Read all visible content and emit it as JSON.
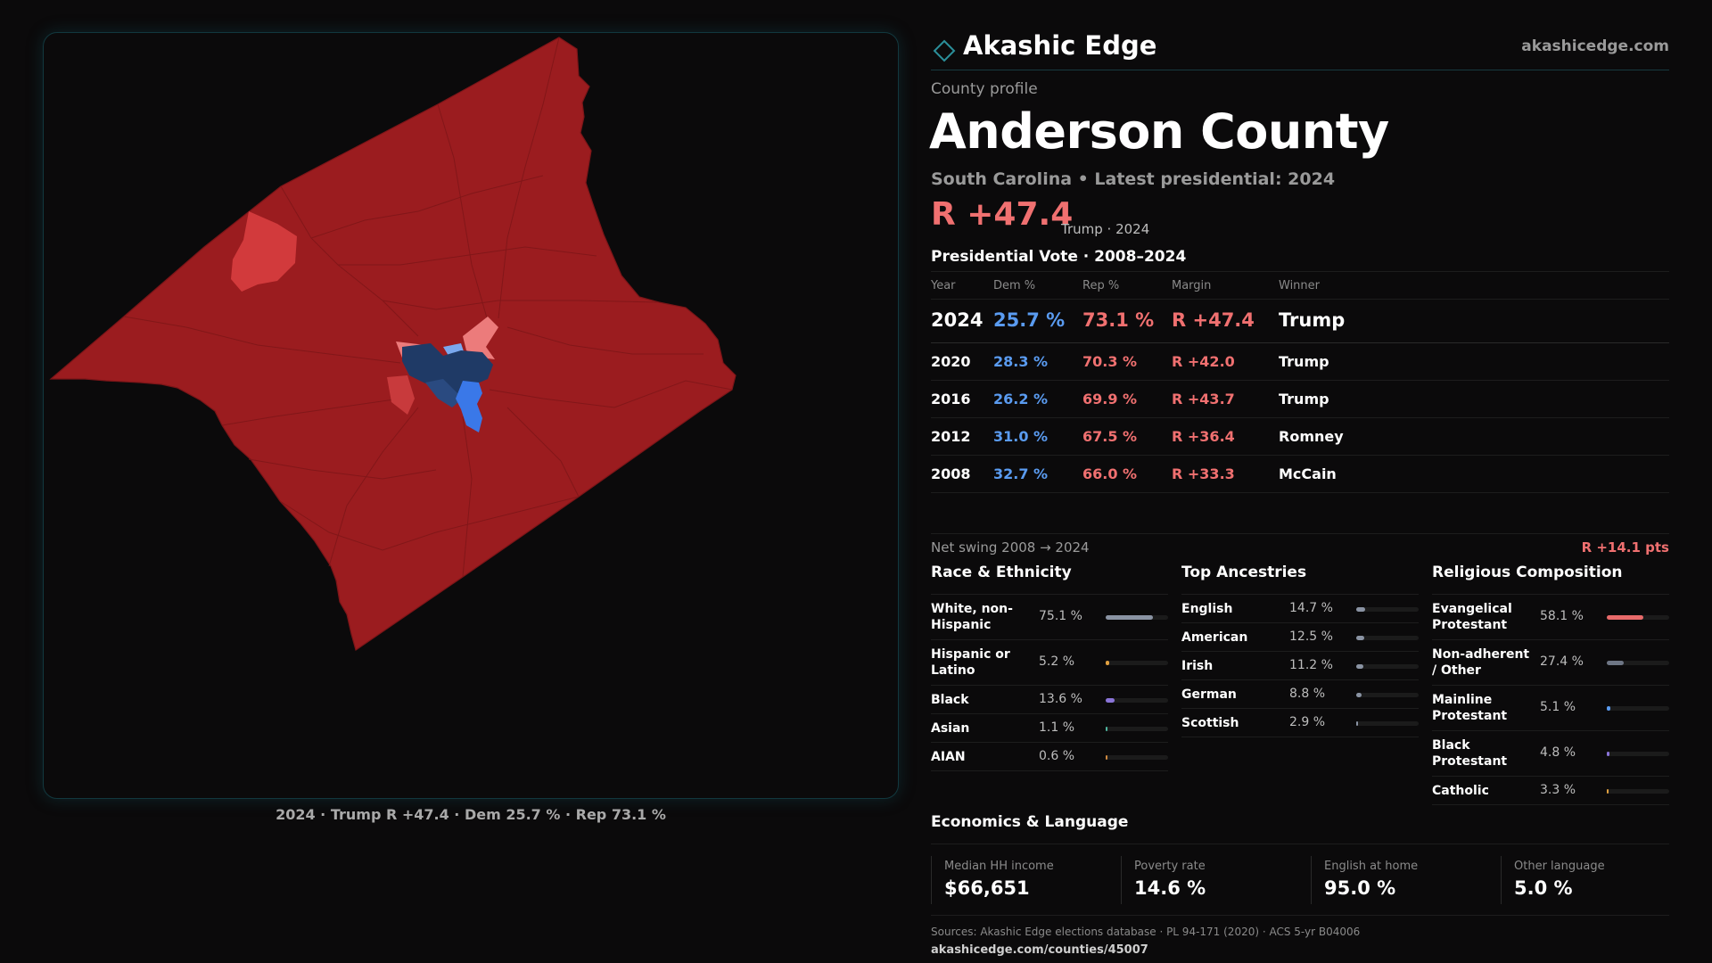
{
  "brand": {
    "name": "Akashic Edge",
    "url": "akashicedge.com"
  },
  "profile": {
    "kicker": "County profile",
    "county": "Anderson County",
    "subline": "South Carolina • Latest presidential: 2024",
    "margin": "R +47.4",
    "margin_note": "Trump · 2024"
  },
  "vote": {
    "title": "Presidential Vote · 2008–2024",
    "headers": {
      "year": "Year",
      "dem": "Dem %",
      "rep": "Rep %",
      "margin": "Margin",
      "winner": "Winner"
    },
    "rows": [
      {
        "year": "2024",
        "dem": "25.7 %",
        "rep": "73.1 %",
        "margin": "R +47.4",
        "winner": "Trump"
      },
      {
        "year": "2020",
        "dem": "28.3 %",
        "rep": "70.3 %",
        "margin": "R +42.0",
        "winner": "Trump"
      },
      {
        "year": "2016",
        "dem": "26.2 %",
        "rep": "69.9 %",
        "margin": "R +43.7",
        "winner": "Trump"
      },
      {
        "year": "2012",
        "dem": "31.0 %",
        "rep": "67.5 %",
        "margin": "R +36.4",
        "winner": "Romney"
      },
      {
        "year": "2008",
        "dem": "32.7 %",
        "rep": "66.0 %",
        "margin": "R +33.3",
        "winner": "McCain"
      }
    ],
    "swing_label": "Net swing 2008 → 2024",
    "swing_value": "R +14.1 pts"
  },
  "race": {
    "title": "Race & Ethnicity",
    "items": [
      {
        "name": "White, non-Hispanic",
        "pct": "75.1 %",
        "value": 75.1,
        "color": "#8a93a3"
      },
      {
        "name": "Hispanic or Latino",
        "pct": "5.2 %",
        "value": 5.2,
        "color": "#e0a040"
      },
      {
        "name": "Black",
        "pct": "13.6 %",
        "value": 13.6,
        "color": "#8a74d8"
      },
      {
        "name": "Asian",
        "pct": "1.1 %",
        "value": 1.1,
        "color": "#4fb6a0"
      },
      {
        "name": "AIAN",
        "pct": "0.6 %",
        "value": 0.6,
        "color": "#d08a40"
      }
    ]
  },
  "ancestry": {
    "title": "Top Ancestries",
    "items": [
      {
        "name": "English",
        "pct": "14.7 %",
        "value": 14.7,
        "color": "#8a93a3"
      },
      {
        "name": "American",
        "pct": "12.5 %",
        "value": 12.5,
        "color": "#8a93a3"
      },
      {
        "name": "Irish",
        "pct": "11.2 %",
        "value": 11.2,
        "color": "#8a93a3"
      },
      {
        "name": "German",
        "pct": "8.8 %",
        "value": 8.8,
        "color": "#8a93a3"
      },
      {
        "name": "Scottish",
        "pct": "2.9 %",
        "value": 2.9,
        "color": "#8a93a3"
      }
    ]
  },
  "religion": {
    "title": "Religious Composition",
    "items": [
      {
        "name": "Evangelical Protestant",
        "pct": "58.1 %",
        "value": 58.1,
        "color": "#e86a6a"
      },
      {
        "name": "Non-adherent / Other",
        "pct": "27.4 %",
        "value": 27.4,
        "color": "#6e7685"
      },
      {
        "name": "Mainline Protestant",
        "pct": "5.1 %",
        "value": 5.1,
        "color": "#5a9bf0"
      },
      {
        "name": "Black Protestant",
        "pct": "4.8 %",
        "value": 4.8,
        "color": "#8a74d8"
      },
      {
        "name": "Catholic",
        "pct": "3.3 %",
        "value": 3.3,
        "color": "#e0a040"
      }
    ]
  },
  "economics": {
    "title": "Economics & Language",
    "items": [
      {
        "label": "Median HH income",
        "value": "$66,651"
      },
      {
        "label": "Poverty rate",
        "value": "14.6 %"
      },
      {
        "label": "English at home",
        "value": "95.0 %"
      },
      {
        "label": "Other language",
        "value": "5.0 %"
      }
    ]
  },
  "map": {
    "caption": "2024 · Trump R +47.4 · Dem 25.7 % · Rep 73.1 %",
    "colors": {
      "county": "#9b1c1f",
      "strong_rep_precinct": "#d23a3c",
      "lean_rep": "#ec7b7b",
      "dem_dark": "#1f3a66",
      "dem_mid": "#3a78e8",
      "dem_light": "#7aa8ee"
    }
  },
  "sources": {
    "text": "Sources: Akashic Edge elections database · PL 94-171 (2020) · ACS 5-yr B04006",
    "url": "akashicedge.com/counties/45007"
  }
}
